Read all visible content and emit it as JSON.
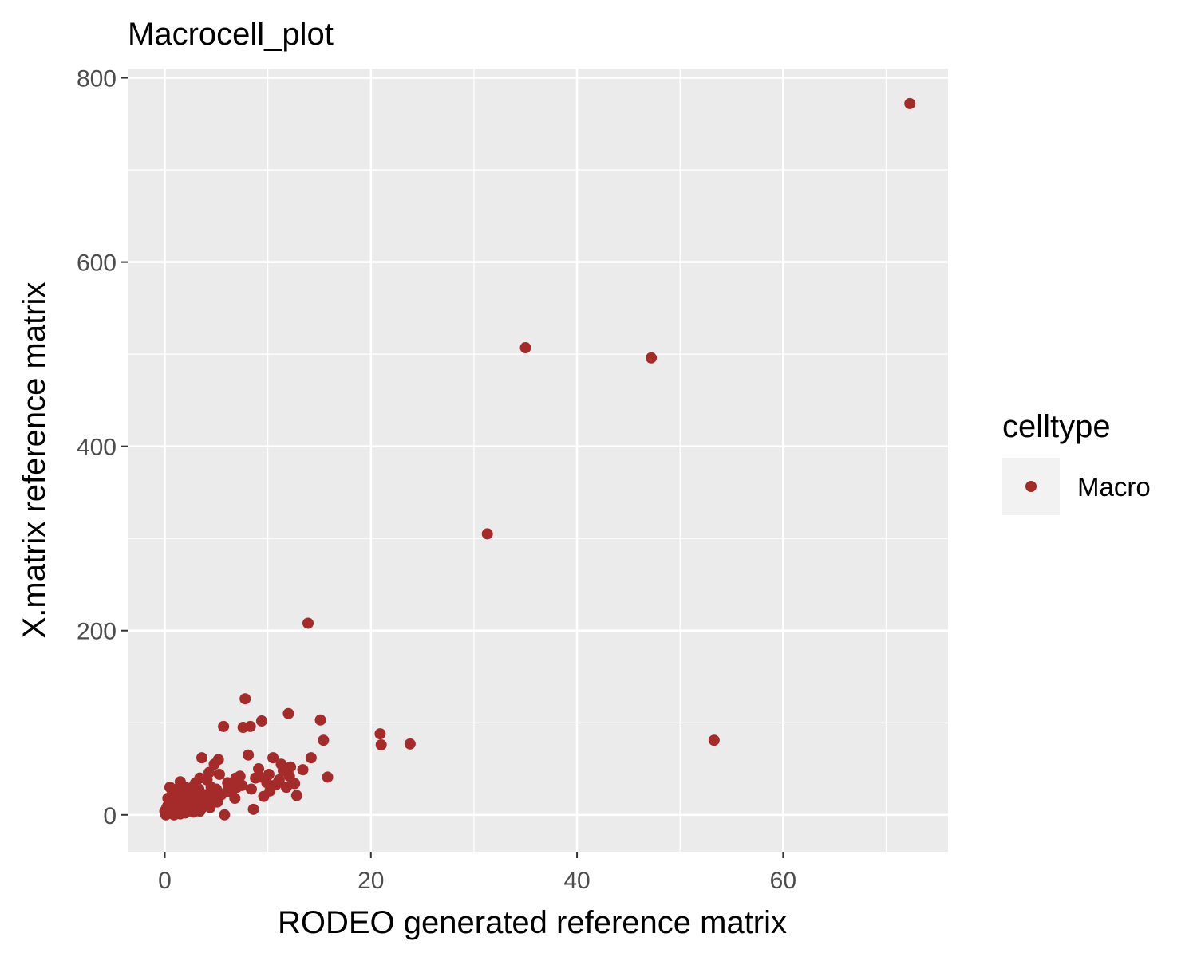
{
  "chart_data": {
    "type": "scatter",
    "title": "Macrocell_plot",
    "xlabel": "RODEO generated reference matrix",
    "ylabel": "X.matrix reference matrix",
    "xlim": [
      -3.6,
      76
    ],
    "ylim": [
      -40,
      810
    ],
    "xticks": [
      0,
      20,
      40,
      60
    ],
    "yticks": [
      0,
      200,
      400,
      600,
      800
    ],
    "x_minor_ticks": [
      10,
      30,
      50,
      70
    ],
    "y_minor_ticks": [
      100,
      300,
      500,
      700
    ],
    "grid": true,
    "legend": {
      "title": "celltype",
      "position": "right",
      "entries": [
        {
          "label": "Macro",
          "color": "#a52a2a"
        }
      ]
    },
    "colors": {
      "point": "#a52a2a",
      "panel": "#ebebeb",
      "grid": "#ffffff"
    },
    "series": [
      {
        "name": "Macro",
        "points": [
          [
            72.3,
            772
          ],
          [
            35.0,
            507
          ],
          [
            47.2,
            496
          ],
          [
            31.3,
            305
          ],
          [
            13.9,
            208
          ],
          [
            53.3,
            81
          ],
          [
            7.8,
            126
          ],
          [
            12.0,
            110
          ],
          [
            5.7,
            96
          ],
          [
            8.3,
            96
          ],
          [
            7.6,
            95
          ],
          [
            9.4,
            102
          ],
          [
            15.1,
            103
          ],
          [
            20.9,
            88
          ],
          [
            21.0,
            76
          ],
          [
            23.8,
            77
          ],
          [
            15.4,
            81
          ],
          [
            3.6,
            62
          ],
          [
            5.2,
            60
          ],
          [
            8.1,
            65
          ],
          [
            10.5,
            62
          ],
          [
            14.2,
            62
          ],
          [
            4.8,
            55
          ],
          [
            11.3,
            55
          ],
          [
            12.2,
            52
          ],
          [
            9.1,
            50
          ],
          [
            13.4,
            49
          ],
          [
            4.3,
            46
          ],
          [
            5.3,
            44
          ],
          [
            10.1,
            44
          ],
          [
            7.3,
            42
          ],
          [
            8.8,
            40
          ],
          [
            15.8,
            41
          ],
          [
            6.1,
            35
          ],
          [
            9.9,
            35
          ],
          [
            11.1,
            38
          ],
          [
            12.6,
            34
          ],
          [
            7.0,
            30
          ],
          [
            8.4,
            28
          ],
          [
            10.2,
            26
          ],
          [
            11.8,
            30
          ],
          [
            12.8,
            21
          ],
          [
            8.6,
            6
          ],
          [
            5.8,
            0
          ],
          [
            6.5,
            26
          ],
          [
            3.4,
            40
          ],
          [
            2.9,
            33
          ],
          [
            1.5,
            36
          ],
          [
            0.5,
            30
          ],
          [
            1.0,
            25
          ],
          [
            2.1,
            28
          ],
          [
            3.8,
            22
          ],
          [
            4.5,
            30
          ],
          [
            2.6,
            18
          ],
          [
            1.8,
            15
          ],
          [
            0.3,
            18
          ],
          [
            0.8,
            12
          ],
          [
            1.2,
            20
          ],
          [
            2.2,
            10
          ],
          [
            3.0,
            15
          ],
          [
            3.2,
            8
          ],
          [
            4.0,
            12
          ],
          [
            4.8,
            18
          ],
          [
            5.5,
            22
          ],
          [
            6.0,
            25
          ],
          [
            0.4,
            2
          ],
          [
            0.6,
            5
          ],
          [
            1.4,
            3
          ],
          [
            2.4,
            5
          ],
          [
            3.5,
            6
          ],
          [
            0.1,
            0
          ],
          [
            0.2,
            8
          ],
          [
            0.9,
            0
          ],
          [
            1.6,
            8
          ],
          [
            2.0,
            2
          ],
          [
            2.7,
            12
          ],
          [
            3.7,
            16
          ],
          [
            4.2,
            20
          ],
          [
            1.1,
            14
          ],
          [
            0.7,
            22
          ],
          [
            1.9,
            24
          ],
          [
            2.5,
            26
          ],
          [
            3.3,
            28
          ],
          [
            4.6,
            26
          ],
          [
            5.1,
            14
          ],
          [
            6.8,
            18
          ],
          [
            0.0,
            4
          ],
          [
            0.3,
            10
          ],
          [
            1.3,
            6
          ],
          [
            2.8,
            3
          ],
          [
            1.7,
            11
          ],
          [
            2.3,
            20
          ],
          [
            3.1,
            23
          ],
          [
            0.5,
            15
          ],
          [
            1.0,
            8
          ],
          [
            3.9,
            10
          ],
          [
            4.4,
            8
          ],
          [
            2.0,
            30
          ],
          [
            1.2,
            28
          ],
          [
            3.0,
            35
          ],
          [
            5.0,
            28
          ],
          [
            6.2,
            30
          ],
          [
            7.5,
            32
          ],
          [
            6.9,
            40
          ],
          [
            9.6,
            20
          ],
          [
            12.1,
            42
          ],
          [
            11.5,
            48
          ],
          [
            10.8,
            33
          ],
          [
            9.2,
            41
          ],
          [
            4.1,
            38
          ],
          [
            0.2,
            1
          ],
          [
            0.8,
            3
          ],
          [
            1.5,
            1
          ],
          [
            2.6,
            7
          ],
          [
            3.4,
            4
          ],
          [
            0.4,
            6
          ],
          [
            1.8,
            4
          ],
          [
            2.9,
            9
          ],
          [
            0.6,
            9
          ]
        ]
      }
    ]
  }
}
